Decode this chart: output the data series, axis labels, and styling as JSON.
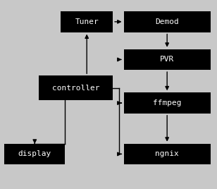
{
  "background_color": "#c8c8c8",
  "box_color": "#000000",
  "text_color": "#ffffff",
  "boxes": {
    "Tuner": [
      0.28,
      0.83,
      0.24,
      0.11
    ],
    "Demod": [
      0.57,
      0.83,
      0.4,
      0.11
    ],
    "controller": [
      0.18,
      0.47,
      0.34,
      0.13
    ],
    "PVR": [
      0.57,
      0.63,
      0.4,
      0.11
    ],
    "ffmpeg": [
      0.57,
      0.4,
      0.4,
      0.11
    ],
    "ngnix": [
      0.57,
      0.13,
      0.4,
      0.11
    ],
    "display": [
      0.02,
      0.13,
      0.28,
      0.11
    ]
  },
  "font_size": 8,
  "font_family": "monospace"
}
